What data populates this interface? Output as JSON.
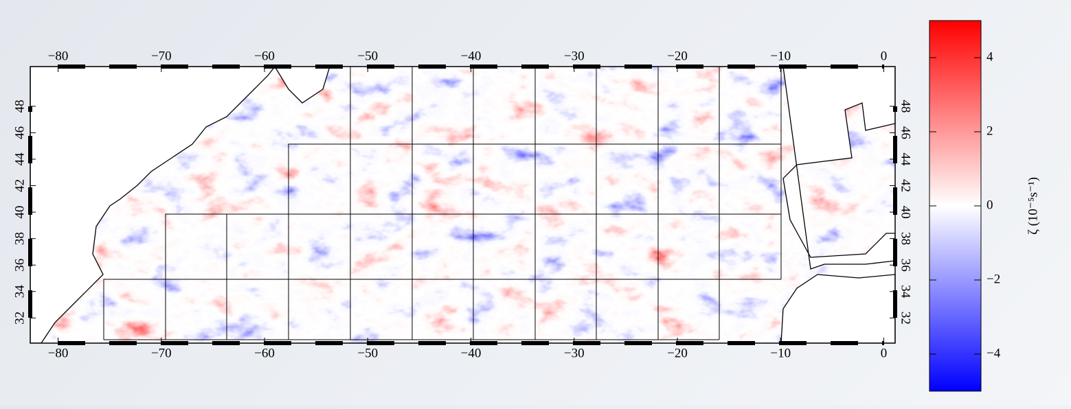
{
  "chart_data": {
    "type": "map",
    "xlim": [
      -82.7,
      1.1
    ],
    "xticks": [
      {
        "value": -80,
        "label": "−80"
      },
      {
        "value": -70,
        "label": "−70"
      },
      {
        "value": -60,
        "label": "−60"
      },
      {
        "value": -50,
        "label": "−50"
      },
      {
        "value": -40,
        "label": "−40"
      },
      {
        "value": -30,
        "label": "−30"
      },
      {
        "value": -20,
        "label": "−20"
      },
      {
        "value": -10,
        "label": "−10"
      },
      0
    ],
    "ylim": [
      30.1,
      51.0
    ],
    "yticks": [
      32,
      34,
      36,
      38,
      40,
      42,
      44,
      46,
      48
    ],
    "colorbar": {
      "label": "ζ (10⁻⁵s⁻¹)",
      "lim": [
        -5,
        5
      ],
      "ticks": [
        {
          "value": -4,
          "label": "−4"
        },
        {
          "value": -2,
          "label": "−2"
        },
        0,
        2,
        4
      ],
      "colors": [
        "#0000ff",
        "#ffffff",
        "#ff0000"
      ]
    }
  }
}
